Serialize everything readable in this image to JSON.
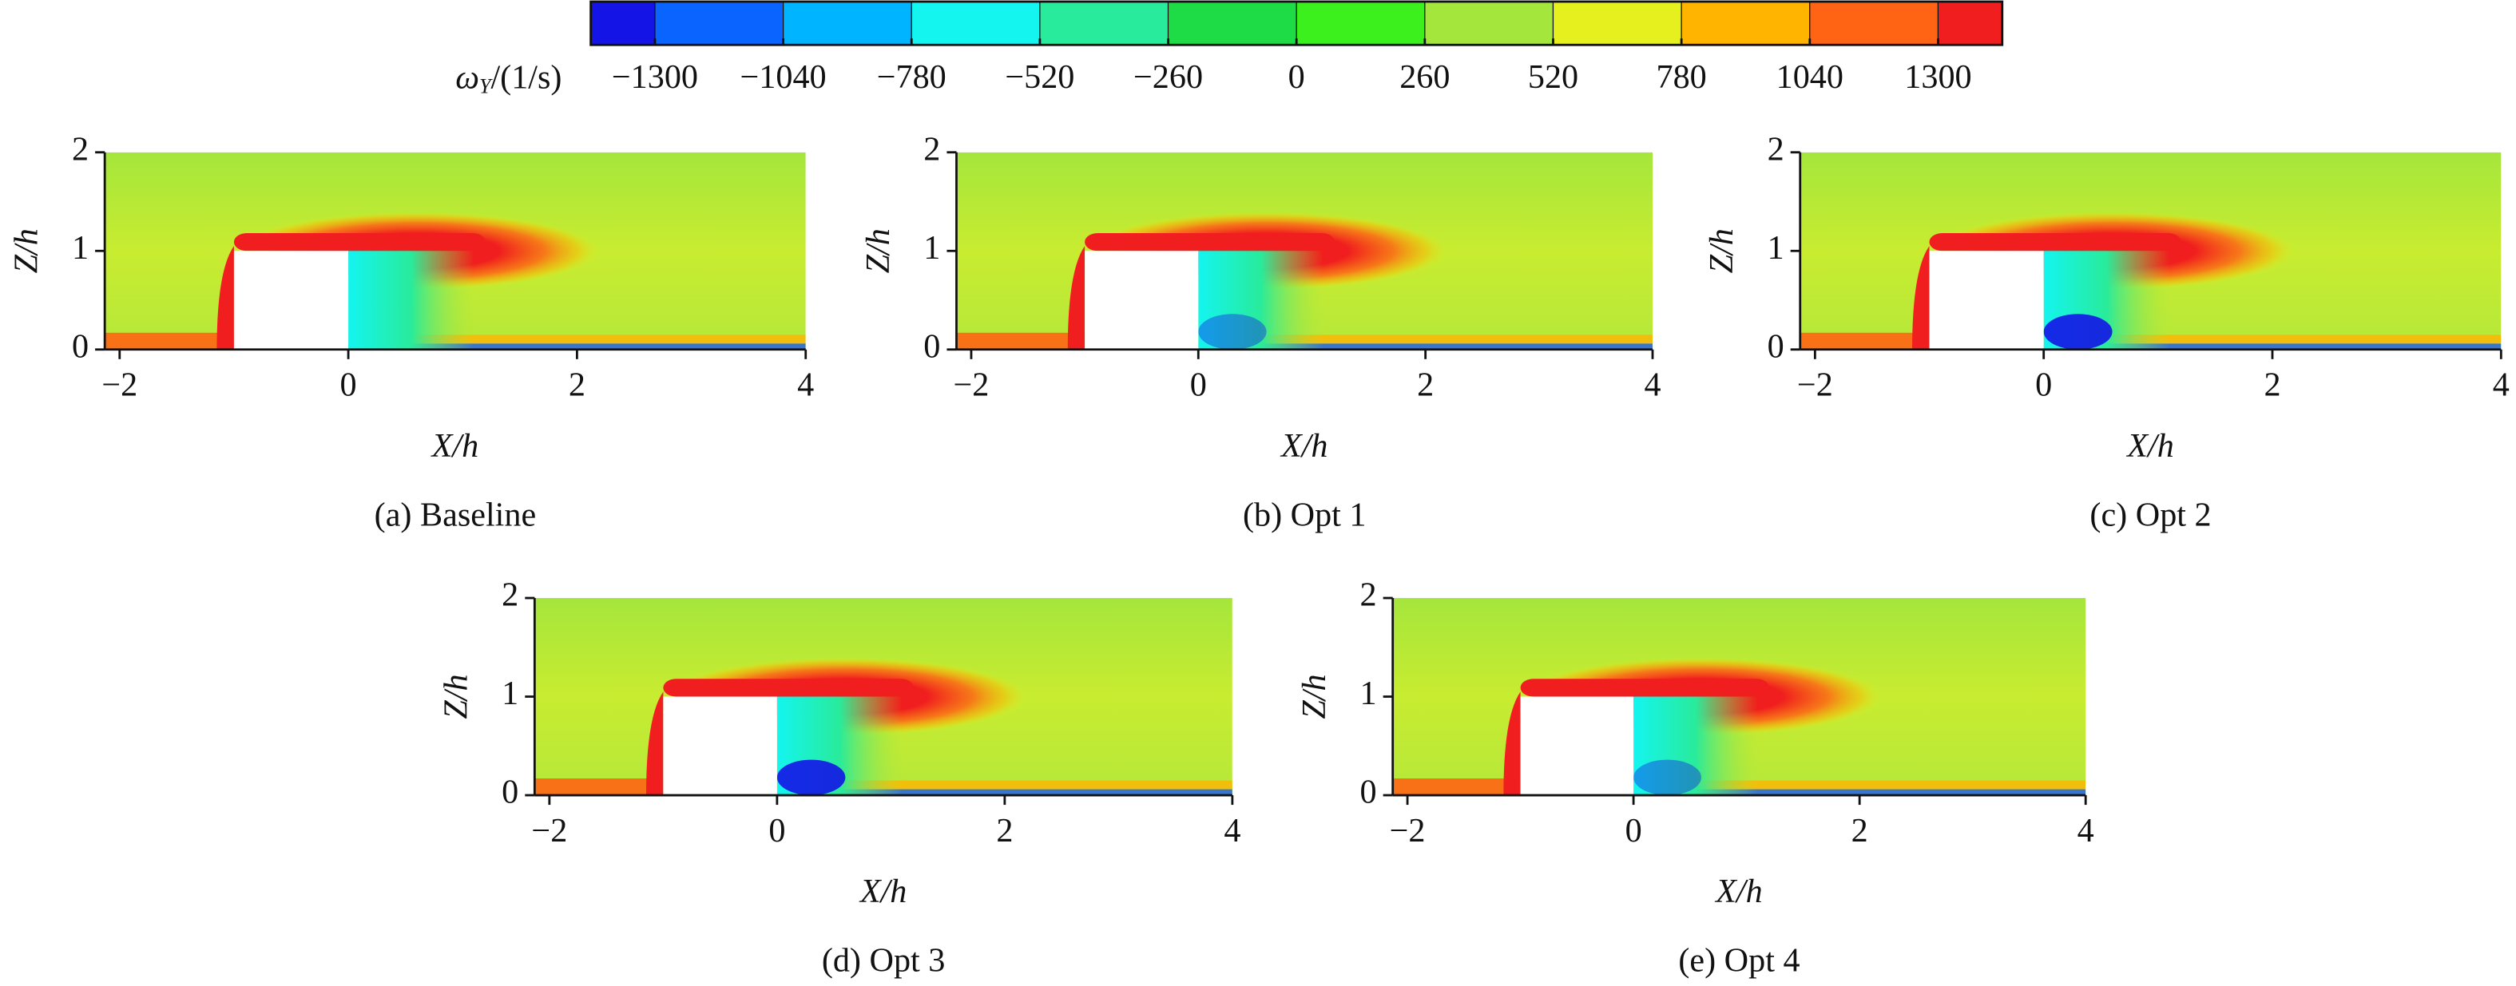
{
  "colorbar": {
    "label": {
      "symbol": "ω",
      "subscript": "Y",
      "unit": "/(1/s)"
    },
    "lim": [
      -1430,
      1430
    ],
    "colors": [
      "#1414e6",
      "#0a64ff",
      "#00b4ff",
      "#14f5f0",
      "#28eb9b",
      "#1edc46",
      "#3cf01e",
      "#a5e63c",
      "#e6f01e",
      "#ffb400",
      "#ff6414",
      "#f01e1e"
    ],
    "ticks": [
      {
        "value": -1300,
        "label": "−1300"
      },
      {
        "value": -1040,
        "label": "−1040"
      },
      {
        "value": -780,
        "label": "−780"
      },
      {
        "value": -520,
        "label": "−520"
      },
      {
        "value": -260,
        "label": "−260"
      },
      0,
      260,
      520,
      780,
      1040,
      1300
    ]
  },
  "chart_data": [
    {
      "type": "contour",
      "caption": "(a) Baseline",
      "xlabel": "X/h",
      "ylabel": "Z/h",
      "xlim": [
        -2.13,
        4
      ],
      "ylim": [
        0,
        2
      ],
      "xticks": [
        {
          "value": -2,
          "label": "−2"
        },
        0,
        2,
        4
      ],
      "yticks": [
        0,
        1,
        2
      ]
    },
    {
      "type": "contour",
      "caption": "(b) Opt 1",
      "xlabel": "X/h",
      "ylabel": "Z/h",
      "xlim": [
        -2.13,
        4
      ],
      "ylim": [
        0,
        2
      ],
      "xticks": [
        {
          "value": -2,
          "label": "−2"
        },
        0,
        2,
        4
      ],
      "yticks": [
        0,
        1,
        2
      ]
    },
    {
      "type": "contour",
      "caption": "(c) Opt 2",
      "xlabel": "X/h",
      "ylabel": "Z/h",
      "xlim": [
        -2.13,
        4
      ],
      "ylim": [
        0,
        2
      ],
      "xticks": [
        {
          "value": -2,
          "label": "−2"
        },
        0,
        2,
        4
      ],
      "yticks": [
        0,
        1,
        2
      ]
    },
    {
      "type": "contour",
      "caption": "(d) Opt 3",
      "xlabel": "X/h",
      "ylabel": "Z/h",
      "xlim": [
        -2.13,
        4
      ],
      "ylim": [
        0,
        2
      ],
      "xticks": [
        {
          "value": -2,
          "label": "−2"
        },
        0,
        2,
        4
      ],
      "yticks": [
        0,
        1,
        2
      ]
    },
    {
      "type": "contour",
      "caption": "(e) Opt 4",
      "xlabel": "X/h",
      "ylabel": "Z/h",
      "xlim": [
        -2.13,
        4
      ],
      "ylim": [
        0,
        2
      ],
      "xticks": [
        {
          "value": -2,
          "label": "−2"
        },
        0,
        2,
        4
      ],
      "yticks": [
        0,
        1,
        2
      ]
    }
  ]
}
